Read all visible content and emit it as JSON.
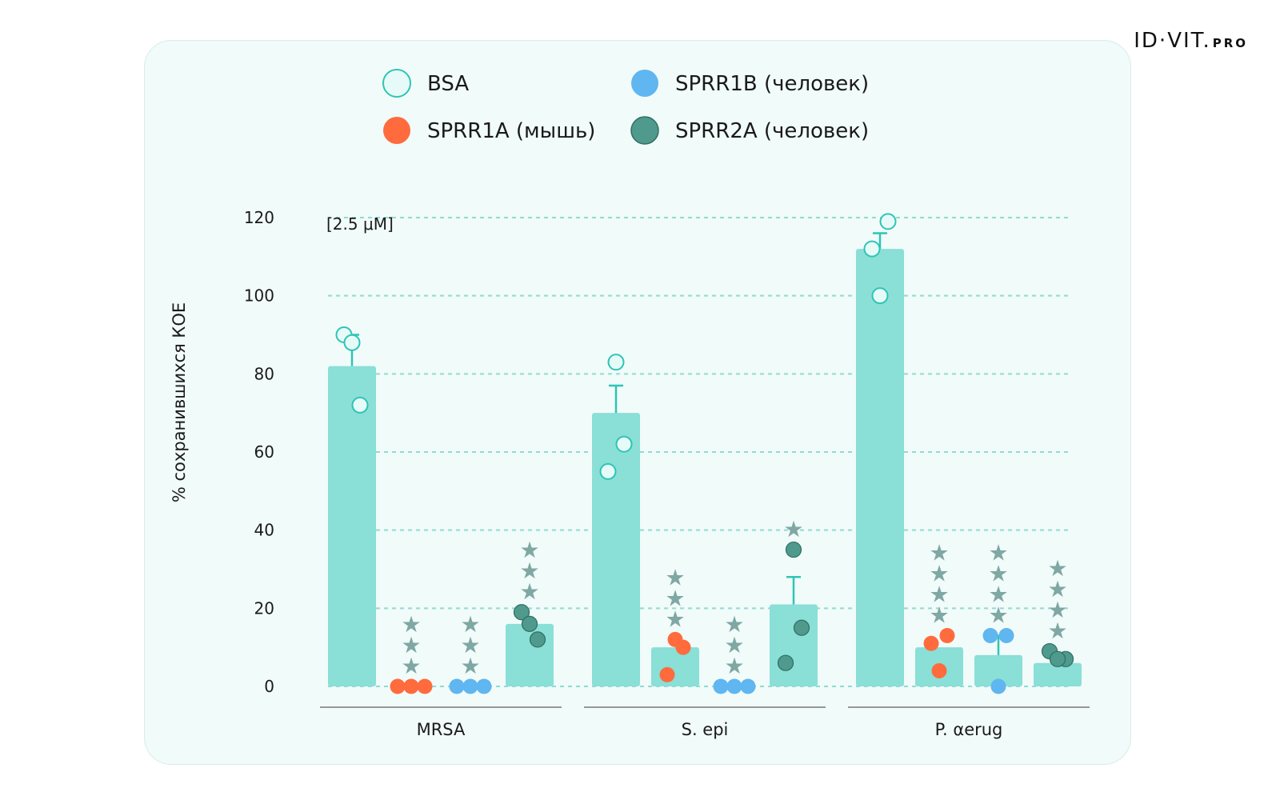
{
  "logo": {
    "main": "ID·VIT.",
    "sub": "PRO"
  },
  "colors": {
    "bar": "#8adfd7",
    "bsa_fill": "#e6fbf8",
    "bsa_stroke": "#2fc4b6",
    "sprr1a": "#ff6b3d",
    "sprr1b": "#5fb6f0",
    "sprr2a": "#4f9a8c",
    "star": "#7fa8a4",
    "grid": "#8fdbd4",
    "error": "#2fc4b6",
    "axis": "#777777"
  },
  "chart_data": {
    "type": "bar",
    "title": "",
    "annotation": "[2.5 μM]",
    "ylabel": "% сохранившихся КОЕ",
    "xlabel": "",
    "ylim": [
      0,
      120
    ],
    "yticks": [
      "0",
      "20",
      "40",
      "60",
      "80",
      "100",
      "120"
    ],
    "categories": [
      "MRSA",
      "S. epi",
      "P. αerug"
    ],
    "legend": [
      {
        "key": "bsa",
        "label": "BSA"
      },
      {
        "key": "sprr1b",
        "label": "SPRR1B (человек)"
      },
      {
        "key": "sprr1a",
        "label": "SPRR1A (мышь)"
      },
      {
        "key": "sprr2a",
        "label": "SPRR2A (человек)"
      }
    ],
    "series": [
      {
        "name": "BSA",
        "key": "bsa",
        "values": [
          82,
          70,
          112
        ],
        "error": [
          8,
          7,
          4
        ],
        "points": [
          [
            90,
            88,
            72
          ],
          [
            83,
            62,
            55
          ],
          [
            119,
            112,
            100
          ]
        ],
        "stars": [
          0,
          0,
          0
        ]
      },
      {
        "name": "SPRR1A (мышь)",
        "key": "sprr1a",
        "values": [
          0,
          10,
          10
        ],
        "error": [
          0,
          0,
          0
        ],
        "points": [
          [
            0,
            0,
            0
          ],
          [
            12,
            10,
            3
          ],
          [
            13,
            11,
            4
          ]
        ],
        "stars": [
          3,
          3,
          4
        ]
      },
      {
        "name": "SPRR1B (человек)",
        "key": "sprr1b",
        "values": [
          0,
          0,
          8
        ],
        "error": [
          0,
          0,
          5
        ],
        "points": [
          [
            0,
            0,
            0
          ],
          [
            0,
            0,
            0
          ],
          [
            13,
            13,
            0
          ]
        ],
        "stars": [
          3,
          3,
          4
        ]
      },
      {
        "name": "SPRR2A (человек)",
        "key": "sprr2a",
        "values": [
          16,
          21,
          6
        ],
        "error": [
          0,
          7,
          0
        ],
        "points": [
          [
            19,
            16,
            12
          ],
          [
            35,
            15,
            6
          ],
          [
            7,
            9,
            7
          ]
        ],
        "stars": [
          3,
          1,
          4
        ]
      }
    ]
  }
}
